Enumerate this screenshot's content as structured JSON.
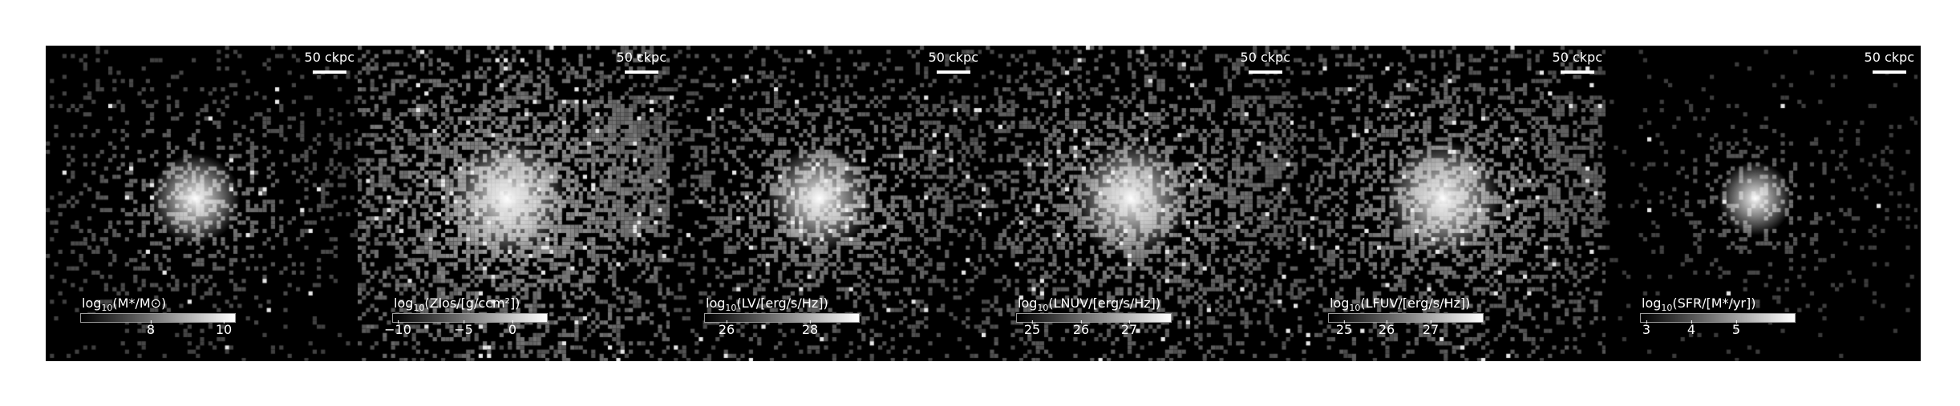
{
  "panels": [
    {
      "scale_label": "50 ckpc",
      "cbar": {
        "pre": "log",
        "sub": "10",
        "body": "(M*/M⊙)",
        "ticks": [
          "8",
          "10"
        ]
      },
      "style": {
        "spread": 0.55,
        "bg": 0.1,
        "core": 1.0
      }
    },
    {
      "scale_label": "50 ckpc",
      "cbar": {
        "pre": "log",
        "sub": "10",
        "body": "(Zlos/[g/ccm²])",
        "ticks": [
          "−10",
          "−5",
          "0"
        ]
      },
      "style": {
        "spread": 1.0,
        "bg": 0.55,
        "core": 1.0
      }
    },
    {
      "scale_label": "50 ckpc",
      "cbar": {
        "pre": "log",
        "sub": "10",
        "body": "(LV/[erg/s/Hz])",
        "ticks": [
          "26",
          "28"
        ]
      },
      "style": {
        "spread": 0.8,
        "bg": 0.28,
        "core": 1.0
      }
    },
    {
      "scale_label": "50 ckpc",
      "cbar": {
        "pre": "log",
        "sub": "10",
        "body": "(LNUV/[erg/s/Hz])",
        "ticks": [
          "25",
          "26",
          "27"
        ]
      },
      "style": {
        "spread": 0.95,
        "bg": 0.35,
        "core": 0.9
      }
    },
    {
      "scale_label": "50 ckpc",
      "cbar": {
        "pre": "log",
        "sub": "10",
        "body": "(LFUV/[erg/s/Hz])",
        "ticks": [
          "25",
          "26",
          "27"
        ]
      },
      "style": {
        "spread": 0.95,
        "bg": 0.35,
        "core": 0.9
      }
    },
    {
      "scale_label": "50 ckpc",
      "cbar": {
        "pre": "log",
        "sub": "10",
        "body": "(SFR/[M*/yr])",
        "ticks": [
          "3",
          "4",
          "5"
        ]
      },
      "style": {
        "spread": 0.3,
        "bg": 0.06,
        "core": 1.0
      }
    }
  ]
}
